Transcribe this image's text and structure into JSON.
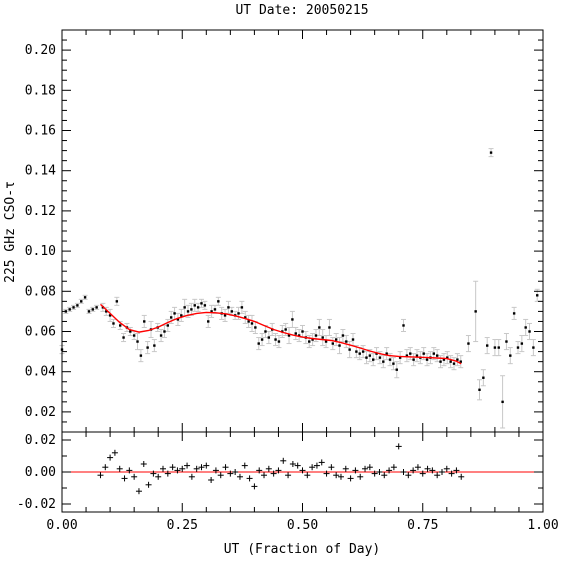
{
  "chart_data": {
    "type": "scatter",
    "title": "UT Date: 20050215",
    "xlabel": "UT (Fraction of Day)",
    "ylabel": "225 GHz CSO-τ",
    "xlim": [
      0,
      1
    ],
    "main_panel": {
      "ylim": [
        0.01,
        0.21
      ],
      "yticks": [
        "0.02",
        "0.04",
        "0.06",
        "0.08",
        "0.10",
        "0.12",
        "0.14",
        "0.16",
        "0.18",
        "0.20"
      ],
      "series": [
        {
          "kind": "points-with-errorbars",
          "color": "#000000",
          "errorbar_color": "#c8c8c8",
          "points": [
            [
              0.0,
              0.051,
              0.002
            ],
            [
              0.008,
              0.07,
              0.001
            ],
            [
              0.016,
              0.071,
              0.001
            ],
            [
              0.024,
              0.072,
              0.001
            ],
            [
              0.032,
              0.073,
              0.001
            ],
            [
              0.04,
              0.075,
              0.001
            ],
            [
              0.048,
              0.077,
              0.001
            ],
            [
              0.056,
              0.07,
              0.001
            ],
            [
              0.064,
              0.071,
              0.001
            ],
            [
              0.072,
              0.072,
              0.001
            ],
            [
              0.085,
              0.072,
              0.002
            ],
            [
              0.092,
              0.07,
              0.002
            ],
            [
              0.1,
              0.068,
              0.003
            ],
            [
              0.107,
              0.064,
              0.002
            ],
            [
              0.114,
              0.075,
              0.002
            ],
            [
              0.121,
              0.063,
              0.002
            ],
            [
              0.128,
              0.057,
              0.002
            ],
            [
              0.135,
              0.062,
              0.002
            ],
            [
              0.142,
              0.06,
              0.002
            ],
            [
              0.15,
              0.058,
              0.002
            ],
            [
              0.157,
              0.055,
              0.004
            ],
            [
              0.164,
              0.048,
              0.003
            ],
            [
              0.171,
              0.065,
              0.003
            ],
            [
              0.178,
              0.052,
              0.003
            ],
            [
              0.185,
              0.061,
              0.004
            ],
            [
              0.192,
              0.053,
              0.003
            ],
            [
              0.199,
              0.062,
              0.002
            ],
            [
              0.206,
              0.058,
              0.003
            ],
            [
              0.213,
              0.06,
              0.003
            ],
            [
              0.22,
              0.063,
              0.003
            ],
            [
              0.227,
              0.067,
              0.003
            ],
            [
              0.234,
              0.069,
              0.003
            ],
            [
              0.241,
              0.066,
              0.003
            ],
            [
              0.248,
              0.068,
              0.003
            ],
            [
              0.255,
              0.072,
              0.004
            ],
            [
              0.262,
              0.07,
              0.003
            ],
            [
              0.269,
              0.071,
              0.003
            ],
            [
              0.276,
              0.073,
              0.003
            ],
            [
              0.283,
              0.072,
              0.002
            ],
            [
              0.29,
              0.074,
              0.002
            ],
            [
              0.297,
              0.073,
              0.002
            ],
            [
              0.304,
              0.065,
              0.003
            ],
            [
              0.311,
              0.07,
              0.003
            ],
            [
              0.318,
              0.071,
              0.002
            ],
            [
              0.325,
              0.075,
              0.002
            ],
            [
              0.332,
              0.069,
              0.003
            ],
            [
              0.339,
              0.068,
              0.003
            ],
            [
              0.346,
              0.072,
              0.003
            ],
            [
              0.353,
              0.07,
              0.002
            ],
            [
              0.36,
              0.068,
              0.002
            ],
            [
              0.367,
              0.069,
              0.003
            ],
            [
              0.374,
              0.072,
              0.003
            ],
            [
              0.381,
              0.067,
              0.003
            ],
            [
              0.388,
              0.065,
              0.003
            ],
            [
              0.395,
              0.064,
              0.004
            ],
            [
              0.402,
              0.062,
              0.003
            ],
            [
              0.409,
              0.054,
              0.003
            ],
            [
              0.416,
              0.056,
              0.003
            ],
            [
              0.423,
              0.06,
              0.003
            ],
            [
              0.43,
              0.057,
              0.003
            ],
            [
              0.437,
              0.061,
              0.003
            ],
            [
              0.444,
              0.056,
              0.003
            ],
            [
              0.451,
              0.055,
              0.003
            ],
            [
              0.458,
              0.06,
              0.003
            ],
            [
              0.465,
              0.061,
              0.003
            ],
            [
              0.472,
              0.058,
              0.004
            ],
            [
              0.479,
              0.066,
              0.004
            ],
            [
              0.486,
              0.059,
              0.003
            ],
            [
              0.493,
              0.058,
              0.003
            ],
            [
              0.5,
              0.06,
              0.003
            ],
            [
              0.507,
              0.057,
              0.003
            ],
            [
              0.514,
              0.055,
              0.003
            ],
            [
              0.521,
              0.056,
              0.003
            ],
            [
              0.528,
              0.058,
              0.003
            ],
            [
              0.535,
              0.062,
              0.004
            ],
            [
              0.542,
              0.057,
              0.004
            ],
            [
              0.549,
              0.055,
              0.003
            ],
            [
              0.556,
              0.062,
              0.004
            ],
            [
              0.563,
              0.054,
              0.003
            ],
            [
              0.57,
              0.056,
              0.003
            ],
            [
              0.577,
              0.053,
              0.004
            ],
            [
              0.584,
              0.058,
              0.003
            ],
            [
              0.591,
              0.055,
              0.003
            ],
            [
              0.598,
              0.051,
              0.004
            ],
            [
              0.605,
              0.056,
              0.003
            ],
            [
              0.612,
              0.05,
              0.003
            ],
            [
              0.619,
              0.049,
              0.003
            ],
            [
              0.626,
              0.05,
              0.003
            ],
            [
              0.633,
              0.047,
              0.003
            ],
            [
              0.64,
              0.048,
              0.003
            ],
            [
              0.647,
              0.046,
              0.003
            ],
            [
              0.654,
              0.049,
              0.003
            ],
            [
              0.661,
              0.047,
              0.003
            ],
            [
              0.668,
              0.045,
              0.003
            ],
            [
              0.675,
              0.049,
              0.003
            ],
            [
              0.682,
              0.046,
              0.003
            ],
            [
              0.689,
              0.044,
              0.003
            ],
            [
              0.696,
              0.041,
              0.004
            ],
            [
              0.703,
              0.047,
              0.003
            ],
            [
              0.71,
              0.063,
              0.003
            ],
            [
              0.717,
              0.048,
              0.003
            ],
            [
              0.724,
              0.049,
              0.003
            ],
            [
              0.731,
              0.046,
              0.003
            ],
            [
              0.738,
              0.048,
              0.003
            ],
            [
              0.745,
              0.047,
              0.003
            ],
            [
              0.752,
              0.049,
              0.003
            ],
            [
              0.759,
              0.046,
              0.003
            ],
            [
              0.766,
              0.047,
              0.003
            ],
            [
              0.773,
              0.049,
              0.003
            ],
            [
              0.78,
              0.048,
              0.003
            ],
            [
              0.787,
              0.045,
              0.003
            ],
            [
              0.794,
              0.046,
              0.003
            ],
            [
              0.801,
              0.047,
              0.003
            ],
            [
              0.808,
              0.045,
              0.003
            ],
            [
              0.815,
              0.044,
              0.003
            ],
            [
              0.822,
              0.046,
              0.003
            ],
            [
              0.829,
              0.045,
              0.003
            ],
            [
              0.845,
              0.054,
              0.004
            ],
            [
              0.86,
              0.07,
              0.015
            ],
            [
              0.868,
              0.031,
              0.005
            ],
            [
              0.876,
              0.037,
              0.004
            ],
            [
              0.884,
              0.053,
              0.004
            ],
            [
              0.892,
              0.149,
              0.002
            ],
            [
              0.9,
              0.052,
              0.004
            ],
            [
              0.908,
              0.052,
              0.004
            ],
            [
              0.916,
              0.025,
              0.013
            ],
            [
              0.924,
              0.055,
              0.004
            ],
            [
              0.932,
              0.048,
              0.004
            ],
            [
              0.94,
              0.069,
              0.003
            ],
            [
              0.948,
              0.052,
              0.003
            ],
            [
              0.956,
              0.054,
              0.004
            ],
            [
              0.964,
              0.062,
              0.004
            ],
            [
              0.972,
              0.06,
              0.004
            ],
            [
              0.98,
              0.052,
              0.004
            ],
            [
              0.988,
              0.078,
              0.003
            ]
          ]
        },
        {
          "kind": "fit-curve",
          "color": "#ff0000",
          "x": [
            0.08,
            0.1,
            0.12,
            0.14,
            0.16,
            0.18,
            0.2,
            0.22,
            0.24,
            0.26,
            0.28,
            0.3,
            0.32,
            0.34,
            0.36,
            0.38,
            0.4,
            0.42,
            0.44,
            0.46,
            0.48,
            0.5,
            0.52,
            0.54,
            0.56,
            0.58,
            0.6,
            0.62,
            0.64,
            0.66,
            0.68,
            0.7,
            0.72,
            0.74,
            0.76,
            0.78,
            0.8,
            0.82,
            0.83
          ],
          "y": [
            0.0735,
            0.069,
            0.0645,
            0.061,
            0.0597,
            0.0605,
            0.0622,
            0.0645,
            0.0665,
            0.068,
            0.069,
            0.0695,
            0.0693,
            0.0688,
            0.0678,
            0.0665,
            0.065,
            0.063,
            0.061,
            0.0595,
            0.0582,
            0.0572,
            0.0565,
            0.056,
            0.0555,
            0.0545,
            0.0532,
            0.0518,
            0.0503,
            0.049,
            0.048,
            0.0476,
            0.0474,
            0.0472,
            0.047,
            0.0468,
            0.0465,
            0.0452,
            0.044
          ]
        }
      ]
    },
    "residual_panel": {
      "ylim": [
        -0.025,
        0.025
      ],
      "yticks": [
        "-0.02",
        "0.00",
        "0.02"
      ],
      "zero_line_color": "#ff0000",
      "residuals_x": [
        0.08,
        0.09,
        0.1,
        0.11,
        0.12,
        0.13,
        0.14,
        0.15,
        0.16,
        0.17,
        0.18,
        0.19,
        0.2,
        0.21,
        0.22,
        0.23,
        0.24,
        0.25,
        0.26,
        0.27,
        0.28,
        0.29,
        0.3,
        0.31,
        0.32,
        0.33,
        0.34,
        0.35,
        0.36,
        0.37,
        0.38,
        0.39,
        0.4,
        0.41,
        0.42,
        0.43,
        0.44,
        0.45,
        0.46,
        0.47,
        0.48,
        0.49,
        0.5,
        0.51,
        0.52,
        0.53,
        0.54,
        0.55,
        0.56,
        0.57,
        0.58,
        0.59,
        0.6,
        0.61,
        0.62,
        0.63,
        0.64,
        0.65,
        0.66,
        0.67,
        0.68,
        0.69,
        0.7,
        0.71,
        0.72,
        0.73,
        0.74,
        0.75,
        0.76,
        0.77,
        0.78,
        0.79,
        0.8,
        0.81,
        0.82,
        0.83
      ],
      "residuals_y": [
        -0.002,
        0.003,
        0.009,
        0.012,
        0.002,
        -0.004,
        0.001,
        -0.003,
        -0.012,
        0.005,
        -0.008,
        -0.001,
        -0.003,
        0.002,
        -0.001,
        0.003,
        0.001,
        0.002,
        0.004,
        -0.003,
        0.002,
        0.003,
        0.004,
        -0.005,
        0.001,
        -0.002,
        0.003,
        -0.001,
        0.0,
        -0.003,
        0.004,
        -0.004,
        -0.009,
        0.001,
        -0.002,
        0.002,
        -0.001,
        0.001,
        0.007,
        -0.002,
        0.005,
        0.004,
        0.001,
        -0.002,
        0.003,
        0.004,
        0.006,
        -0.001,
        0.003,
        -0.002,
        -0.003,
        0.002,
        -0.004,
        0.001,
        -0.003,
        0.002,
        0.003,
        -0.001,
        0.0,
        -0.002,
        0.001,
        0.003,
        0.016,
        0.0,
        -0.002,
        0.001,
        0.003,
        -0.001,
        0.002,
        0.001,
        -0.002,
        0.0,
        0.002,
        -0.001,
        0.001,
        -0.003
      ]
    },
    "xticks": [
      "0.00",
      "0.25",
      "0.50",
      "0.75",
      "1.00"
    ]
  }
}
